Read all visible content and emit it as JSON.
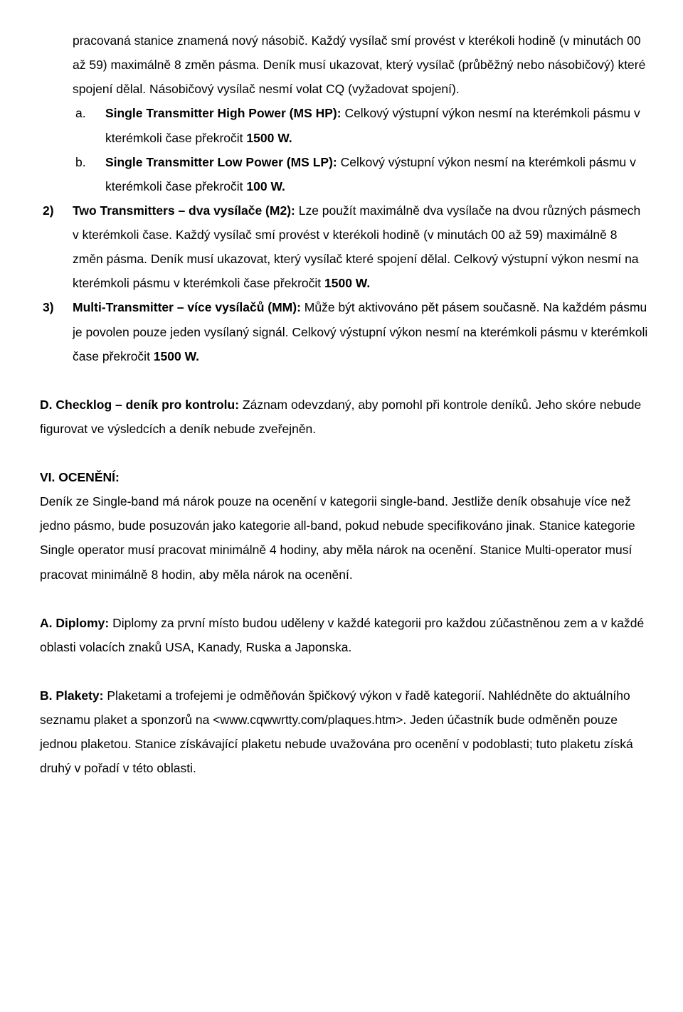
{
  "p1": "pracovaná stanice znamená nový násobič. Každý vysílač smí provést v kterékoli hodině (v minutách 00 až 59) maximálně 8 změn pásma. Deník musí ukazovat, který vysílač (průběžný nebo násobičový) které spojení dělal. Násobičový vysílač nesmí volat CQ (vyžadovat spojení).",
  "a_let": "a.",
  "a_bold": "Single Transmitter High Power (MS HP):",
  "a_rest": " Celkový výstupní výkon nesmí na kterémkoli pásmu v kterémkoli čase překročit ",
  "a_1500": "1500 W.",
  "b_let": "b.",
  "b_bold": "Single Transmitter Low Power (MS LP):",
  "b_rest": " Celkový výstupní výkon nesmí na kterémkoli pásmu v kterémkoli čase překročit ",
  "b_100": "100 W.",
  "n2": "2)",
  "n2_bold": "Two Transmitters – dva vysílače (M2):",
  "n2_rest1": " Lze použít maximálně dva vysílače na dvou různých pásmech v kterémkoli čase. Každý vysílač smí provést v kterékoli hodině (v minutách 00 až 59) maximálně 8 změn pásma. Deník musí ukazovat, který vysílač které spojení dělal. Celkový výstupní výkon nesmí na kterémkoli pásmu v kterémkoli čase překročit ",
  "n2_1500": "1500 W.",
  "n3": "3)",
  "n3_bold": "Multi-Transmitter – více vysílačů (MM):",
  "n3_rest": " Může být aktivováno pět pásem současně. Na každém pásmu je povolen pouze jeden vysílaný signál. Celkový výstupní výkon nesmí na kterémkoli pásmu v kterémkoli čase překročit ",
  "n3_1500": "1500 W.",
  "d_bold": "D. Checklog – deník pro kontrolu:",
  "d_rest": " Záznam odevzdaný, aby pomohl při kontrole deníků. Jeho skóre nebude figurovat ve výsledcích a deník nebude zveřejněn.",
  "vi_bold": "VI. OCENĚNÍ:",
  "vi_rest": "Deník ze Single-band má nárok pouze na ocenění v kategorii single-band. Jestliže deník obsahuje více než jedno pásmo, bude posuzován jako kategorie all-band, pokud nebude specifikováno jinak. Stanice kategorie Single operator musí pracovat minimálně  4 hodiny, aby měla nárok na ocenění. Stanice Multi-operator musí pracovat minimálně  8 hodin, aby měla nárok na ocenění.",
  "a2_bold": "A. Diplomy:",
  "a2_rest": " Diplomy za první místo budou uděleny v každé kategorii pro každou zúčastněnou zem a v každé oblasti volacích znaků USA, Kanady, Ruska a Japonska.",
  "b2_bold": "B. Plakety:",
  "b2_rest": " Plaketami a trofejemi je odměňován špičkový výkon v řadě kategorií. Nahlédněte do aktuálního seznamu plaket a sponzorů na <www.cqwwrtty.com/plaques.htm>. Jeden účastník bude odměněn pouze jednou plaketou. Stanice získávající plaketu nebude uvažována pro ocenění v podoblasti; tuto plaketu získá druhý v pořadí v této oblasti."
}
